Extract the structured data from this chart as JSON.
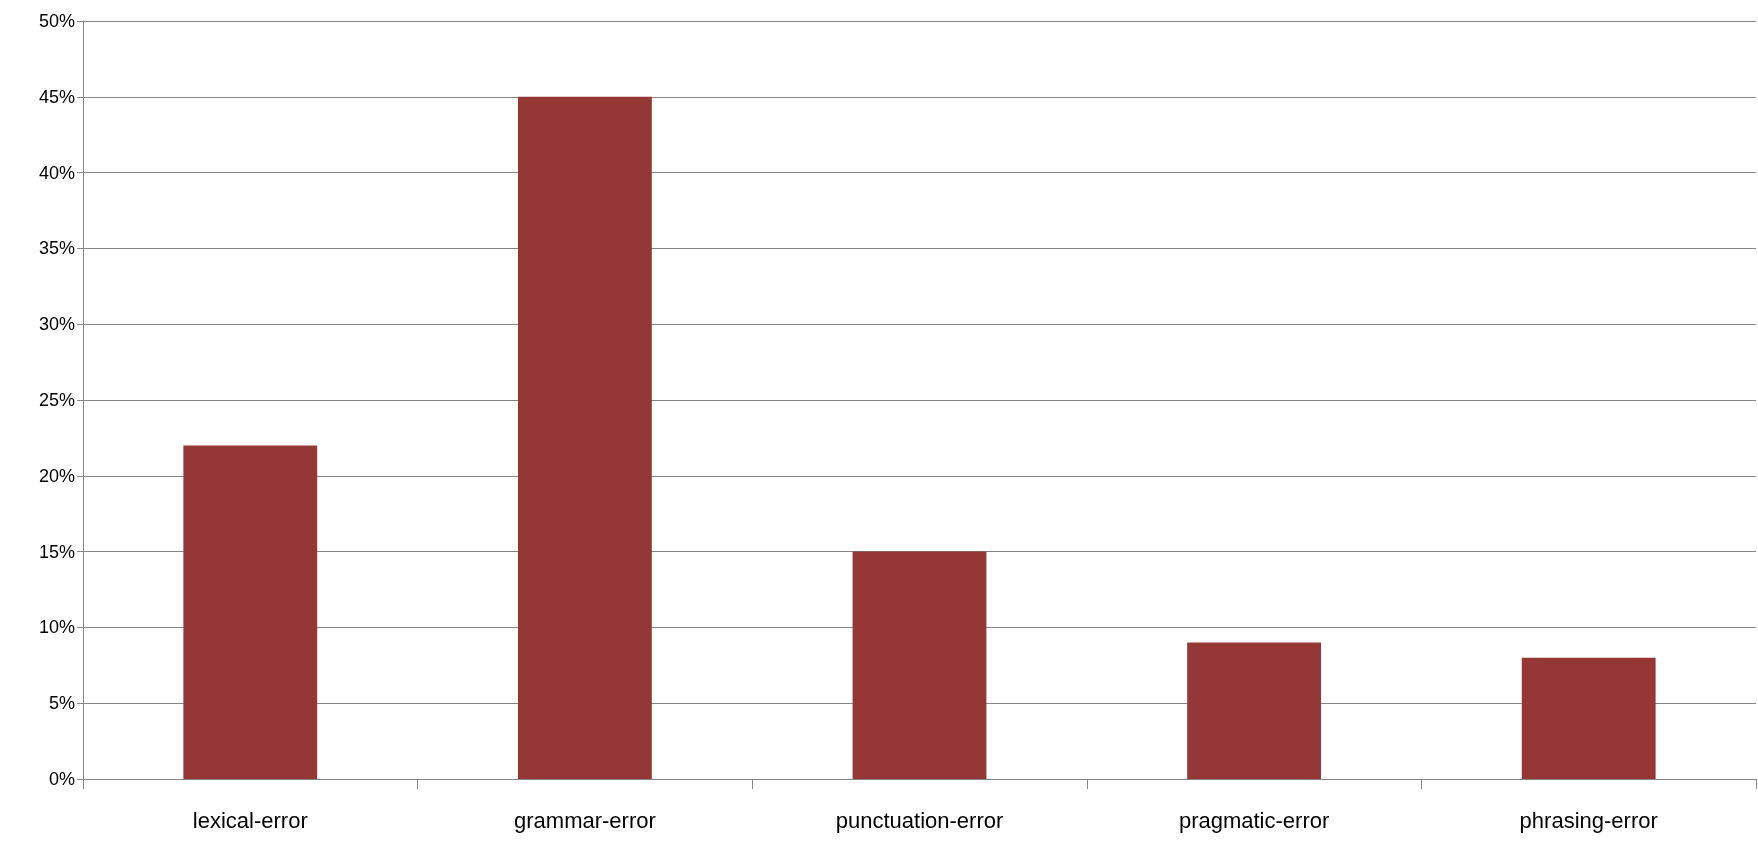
{
  "chart_data": {
    "type": "bar",
    "categories": [
      "lexical-error",
      "grammar-error",
      "punctuation-error",
      "pragmatic-error",
      "phrasing-error"
    ],
    "values": [
      22,
      45,
      15,
      9,
      8
    ],
    "color": "#953735",
    "ylim": [
      0,
      50
    ],
    "yticks": [
      {
        "value": 0,
        "label": "0%"
      },
      {
        "value": 5,
        "label": "5%"
      },
      {
        "value": 10,
        "label": "10%"
      },
      {
        "value": 15,
        "label": "15%"
      },
      {
        "value": 20,
        "label": "20%"
      },
      {
        "value": 25,
        "label": "25%"
      },
      {
        "value": 30,
        "label": "30%"
      },
      {
        "value": 35,
        "label": "35%"
      },
      {
        "value": 40,
        "label": "40%"
      },
      {
        "value": 45,
        "label": "45%"
      },
      {
        "value": 50,
        "label": "50%"
      }
    ],
    "grid": "y"
  }
}
